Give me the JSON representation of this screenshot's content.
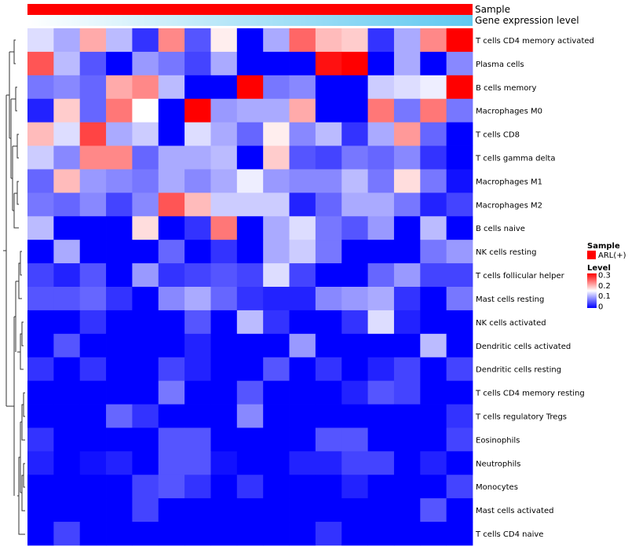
{
  "chart_data": {
    "type": "heatmap",
    "annotation_rows": [
      {
        "label": "Sample",
        "color": "#ff0000"
      },
      {
        "label": "Gene expression level",
        "gradient_from": "#ffffff",
        "gradient_to": "#5fc8f0"
      }
    ],
    "legend": {
      "sample_title": "Sample",
      "sample_entry": "ARL(+)",
      "sample_color": "#ff0000",
      "level_title": "Level",
      "level_ticks": [
        "0.3",
        "0.2",
        "0.1",
        "0"
      ],
      "level_tick_values": [
        0.3,
        0.2,
        0.1,
        0
      ],
      "scale_min": 0,
      "scale_max": 0.3,
      "color_low": "#0000ff",
      "color_mid": "#ffffff",
      "color_high": "#ff0000",
      "mid_value": 0.15
    },
    "row_labels": [
      "T cells CD4 memory activated",
      "Plasma cells",
      "B cells memory",
      "Macrophages M0",
      "T cells CD8",
      "T cells gamma delta",
      "Macrophages M1",
      "Macrophages M2",
      "B cells naive",
      "NK cells resting",
      "T cells follicular helper",
      "Mast cells resting",
      "NK cells activated",
      "Dendritic cells activated",
      "Dendritic cells resting",
      "T cells CD4 memory resting",
      "T cells regulatory  Tregs",
      "Eosinophils",
      "Neutrophils",
      "Monocytes",
      "Mast cells activated",
      "T cells CD4 naive"
    ],
    "values": [
      [
        0.13,
        0.1,
        0.2,
        0.11,
        0.03,
        0.22,
        0.05,
        0.16,
        0.0,
        0.1,
        0.24,
        0.19,
        0.18,
        0.03,
        0.1,
        0.22,
        0.3
      ],
      [
        0.25,
        0.11,
        0.05,
        0.0,
        0.09,
        0.07,
        0.04,
        0.1,
        0.0,
        0.0,
        0.0,
        0.29,
        0.3,
        0.0,
        0.1,
        0.0,
        0.08
      ],
      [
        0.07,
        0.08,
        0.06,
        0.2,
        0.22,
        0.11,
        0.0,
        0.0,
        0.3,
        0.07,
        0.08,
        0.0,
        0.0,
        0.12,
        0.13,
        0.14,
        0.3
      ],
      [
        0.02,
        0.18,
        0.06,
        0.23,
        0.15,
        0.0,
        0.3,
        0.09,
        0.1,
        0.1,
        0.2,
        0.0,
        0.0,
        0.23,
        0.07,
        0.23,
        0.07
      ],
      [
        0.19,
        0.13,
        0.26,
        0.1,
        0.12,
        0.0,
        0.13,
        0.1,
        0.06,
        0.16,
        0.08,
        0.11,
        0.03,
        0.1,
        0.21,
        0.06,
        0.0
      ],
      [
        0.12,
        0.08,
        0.22,
        0.22,
        0.06,
        0.1,
        0.1,
        0.11,
        0.0,
        0.18,
        0.05,
        0.04,
        0.07,
        0.06,
        0.08,
        0.03,
        0.0
      ],
      [
        0.06,
        0.19,
        0.09,
        0.08,
        0.07,
        0.1,
        0.08,
        0.1,
        0.14,
        0.09,
        0.08,
        0.08,
        0.11,
        0.07,
        0.17,
        0.07,
        0.01
      ],
      [
        0.07,
        0.06,
        0.08,
        0.04,
        0.08,
        0.25,
        0.19,
        0.12,
        0.12,
        0.12,
        0.02,
        0.06,
        0.1,
        0.1,
        0.07,
        0.02,
        0.04
      ],
      [
        0.11,
        0.0,
        0.0,
        0.0,
        0.17,
        0.0,
        0.03,
        0.23,
        0.0,
        0.1,
        0.13,
        0.07,
        0.05,
        0.09,
        0.0,
        0.11,
        0.0
      ],
      [
        0.0,
        0.1,
        0.0,
        0.0,
        0.0,
        0.06,
        0.0,
        0.03,
        0.0,
        0.1,
        0.12,
        0.07,
        0.0,
        0.0,
        0.0,
        0.07,
        0.09
      ],
      [
        0.04,
        0.02,
        0.05,
        0.0,
        0.09,
        0.03,
        0.04,
        0.05,
        0.04,
        0.13,
        0.04,
        0.0,
        0.0,
        0.06,
        0.09,
        0.04,
        0.04
      ],
      [
        0.05,
        0.05,
        0.06,
        0.03,
        0.0,
        0.08,
        0.1,
        0.06,
        0.03,
        0.02,
        0.02,
        0.08,
        0.09,
        0.1,
        0.03,
        0.0,
        0.07
      ],
      [
        0.0,
        0.0,
        0.03,
        0.0,
        0.0,
        0.0,
        0.05,
        0.0,
        0.11,
        0.03,
        0.0,
        0.0,
        0.03,
        0.13,
        0.02,
        0.0,
        0.0
      ],
      [
        0.0,
        0.05,
        0.0,
        0.0,
        0.0,
        0.0,
        0.02,
        0.0,
        0.0,
        0.0,
        0.09,
        0.0,
        0.0,
        0.0,
        0.0,
        0.11,
        0.0
      ],
      [
        0.03,
        0.0,
        0.03,
        0.0,
        0.0,
        0.04,
        0.02,
        0.0,
        0.0,
        0.05,
        0.0,
        0.03,
        0.0,
        0.02,
        0.04,
        0.0,
        0.04
      ],
      [
        0.0,
        0.0,
        0.0,
        0.0,
        0.0,
        0.07,
        0.0,
        0.0,
        0.05,
        0.0,
        0.0,
        0.0,
        0.02,
        0.05,
        0.04,
        0.0,
        0.0
      ],
      [
        0.0,
        0.0,
        0.0,
        0.06,
        0.03,
        0.0,
        0.0,
        0.0,
        0.08,
        0.0,
        0.0,
        0.0,
        0.0,
        0.0,
        0.0,
        0.0,
        0.03
      ],
      [
        0.03,
        0.0,
        0.0,
        0.0,
        0.0,
        0.05,
        0.05,
        0.0,
        0.0,
        0.0,
        0.0,
        0.05,
        0.05,
        0.0,
        0.0,
        0.0,
        0.04
      ],
      [
        0.02,
        0.0,
        0.01,
        0.02,
        0.0,
        0.05,
        0.05,
        0.01,
        0.0,
        0.0,
        0.02,
        0.02,
        0.04,
        0.04,
        0.0,
        0.02,
        0.0
      ],
      [
        0.0,
        0.0,
        0.0,
        0.0,
        0.04,
        0.05,
        0.03,
        0.0,
        0.03,
        0.0,
        0.0,
        0.0,
        0.02,
        0.0,
        0.0,
        0.0,
        0.04
      ],
      [
        0.0,
        0.0,
        0.0,
        0.0,
        0.04,
        0.0,
        0.0,
        0.0,
        0.0,
        0.0,
        0.0,
        0.0,
        0.0,
        0.0,
        0.0,
        0.05,
        0.0
      ],
      [
        0.0,
        0.04,
        0.0,
        0.0,
        0.0,
        0.0,
        0.0,
        0.0,
        0.0,
        0.0,
        0.0,
        0.03,
        0.0,
        0.0,
        0.0,
        0.0,
        0.0
      ]
    ]
  }
}
